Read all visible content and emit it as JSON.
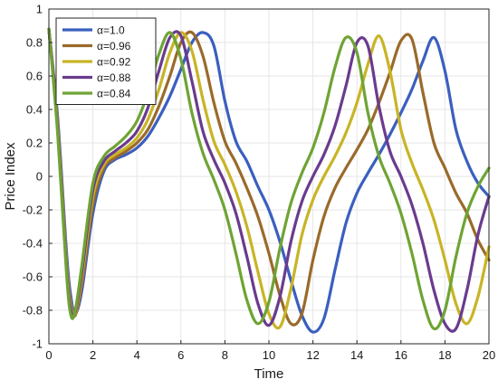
{
  "chart_data": {
    "type": "line",
    "xlabel": "Time",
    "ylabel": "Price Index",
    "xlim": [
      0,
      20
    ],
    "ylim": [
      -1,
      1
    ],
    "xticks": [
      "0",
      "2",
      "4",
      "6",
      "8",
      "10",
      "12",
      "14",
      "16",
      "18",
      "20"
    ],
    "yticks": [
      "1",
      "0.8",
      "0.6",
      "0.4",
      "0.2",
      "0",
      "-0.2",
      "-0.4",
      "-0.6",
      "-0.8",
      "-1"
    ],
    "grid": true,
    "legend_position": "top-left",
    "series": [
      {
        "name": "α=1.0",
        "color": "#3a5fbf",
        "x": [
          0,
          0.4,
          0.8,
          1.0,
          1.2,
          1.5,
          2.0,
          2.5,
          3.0,
          3.5,
          4.0,
          4.5,
          5.0,
          5.5,
          6.0,
          6.5,
          7.0,
          7.5,
          8.0,
          8.5,
          9.0,
          9.5,
          10.0,
          10.5,
          11.0,
          11.5,
          12.0,
          12.5,
          13.0,
          13.5,
          14.0,
          14.5,
          15.0,
          15.5,
          16.0,
          16.5,
          17.0,
          17.5,
          18.0,
          18.5,
          19.0,
          19.5,
          20.0
        ],
        "y": [
          0.88,
          0.35,
          -0.45,
          -0.72,
          -0.82,
          -0.68,
          -0.22,
          0.03,
          0.1,
          0.13,
          0.17,
          0.24,
          0.35,
          0.48,
          0.64,
          0.8,
          0.86,
          0.78,
          0.45,
          0.21,
          0.09,
          -0.06,
          -0.2,
          -0.39,
          -0.62,
          -0.83,
          -0.93,
          -0.85,
          -0.56,
          -0.28,
          -0.1,
          0.02,
          0.13,
          0.25,
          0.38,
          0.52,
          0.69,
          0.83,
          0.63,
          0.28,
          0.09,
          -0.04,
          -0.12
        ]
      },
      {
        "name": "α=0.96",
        "color": "#9a6a2a",
        "x": [
          0,
          0.4,
          0.8,
          1.0,
          1.2,
          1.5,
          2.0,
          2.5,
          3.0,
          3.5,
          4.0,
          4.5,
          5.0,
          5.5,
          6.0,
          6.5,
          7.0,
          7.5,
          8.0,
          8.5,
          9.0,
          9.5,
          10.0,
          10.5,
          11.0,
          11.5,
          12.0,
          12.5,
          13.0,
          13.5,
          14.0,
          14.5,
          15.0,
          15.5,
          16.0,
          16.5,
          17.0,
          17.5,
          18.0,
          18.5,
          19.0,
          19.5,
          20.0
        ],
        "y": [
          0.88,
          0.32,
          -0.5,
          -0.76,
          -0.83,
          -0.64,
          -0.17,
          0.05,
          0.11,
          0.15,
          0.2,
          0.28,
          0.42,
          0.6,
          0.8,
          0.86,
          0.72,
          0.44,
          0.21,
          0.08,
          -0.07,
          -0.24,
          -0.46,
          -0.71,
          -0.88,
          -0.82,
          -0.5,
          -0.24,
          -0.07,
          0.05,
          0.16,
          0.28,
          0.44,
          0.62,
          0.81,
          0.82,
          0.5,
          0.2,
          0.05,
          -0.1,
          -0.22,
          -0.38,
          -0.5
        ]
      },
      {
        "name": "α=0.92",
        "color": "#c8b426",
        "x": [
          0,
          0.4,
          0.8,
          1.0,
          1.2,
          1.5,
          2.0,
          2.5,
          3.0,
          3.5,
          4.0,
          4.5,
          5.0,
          5.5,
          6.0,
          6.5,
          7.0,
          7.5,
          8.0,
          8.5,
          9.0,
          9.5,
          10.0,
          10.5,
          11.0,
          11.5,
          12.0,
          12.5,
          13.0,
          13.5,
          14.0,
          14.5,
          15.0,
          15.5,
          16.0,
          16.5,
          17.0,
          17.5,
          18.0,
          18.5,
          19.0,
          19.5,
          20.0
        ],
        "y": [
          0.88,
          0.3,
          -0.52,
          -0.78,
          -0.82,
          -0.6,
          -0.12,
          0.07,
          0.13,
          0.17,
          0.23,
          0.34,
          0.52,
          0.74,
          0.86,
          0.75,
          0.46,
          0.21,
          0.07,
          -0.09,
          -0.3,
          -0.57,
          -0.82,
          -0.9,
          -0.67,
          -0.35,
          -0.14,
          0.0,
          0.12,
          0.26,
          0.44,
          0.67,
          0.84,
          0.63,
          0.28,
          0.08,
          -0.08,
          -0.26,
          -0.5,
          -0.76,
          -0.88,
          -0.72,
          -0.42
        ]
      },
      {
        "name": "α=0.88",
        "color": "#6a3b8e",
        "x": [
          0,
          0.4,
          0.8,
          1.0,
          1.2,
          1.5,
          2.0,
          2.5,
          3.0,
          3.5,
          4.0,
          4.5,
          5.0,
          5.5,
          6.0,
          6.5,
          7.0,
          7.5,
          8.0,
          8.5,
          9.0,
          9.5,
          10.0,
          10.5,
          11.0,
          11.5,
          12.0,
          12.5,
          13.0,
          13.5,
          14.0,
          14.5,
          15.0,
          15.5,
          16.0,
          16.5,
          17.0,
          17.5,
          18.0,
          18.5,
          19.0,
          19.5,
          20.0
        ],
        "y": [
          0.88,
          0.28,
          -0.55,
          -0.8,
          -0.81,
          -0.57,
          -0.08,
          0.09,
          0.15,
          0.2,
          0.27,
          0.41,
          0.63,
          0.83,
          0.84,
          0.57,
          0.27,
          0.1,
          -0.04,
          -0.22,
          -0.48,
          -0.76,
          -0.89,
          -0.72,
          -0.39,
          -0.15,
          0.0,
          0.13,
          0.3,
          0.54,
          0.8,
          0.78,
          0.42,
          0.15,
          0.0,
          -0.17,
          -0.4,
          -0.68,
          -0.88,
          -0.91,
          -0.68,
          -0.35,
          -0.12
        ]
      },
      {
        "name": "α=0.84",
        "color": "#6ea434",
        "x": [
          0,
          0.4,
          0.8,
          1.0,
          1.2,
          1.5,
          2.0,
          2.5,
          3.0,
          3.5,
          4.0,
          4.5,
          5.0,
          5.5,
          6.0,
          6.5,
          7.0,
          7.5,
          8.0,
          8.5,
          9.0,
          9.5,
          10.0,
          10.5,
          11.0,
          11.5,
          12.0,
          12.5,
          13.0,
          13.5,
          14.0,
          14.5,
          15.0,
          15.5,
          16.0,
          16.5,
          17.0,
          17.5,
          18.0,
          18.5,
          19.0,
          19.5,
          20.0
        ],
        "y": [
          0.88,
          0.25,
          -0.58,
          -0.83,
          -0.8,
          -0.53,
          -0.04,
          0.12,
          0.18,
          0.24,
          0.33,
          0.5,
          0.73,
          0.86,
          0.7,
          0.38,
          0.14,
          -0.02,
          -0.2,
          -0.46,
          -0.74,
          -0.88,
          -0.75,
          -0.43,
          -0.16,
          0.02,
          0.17,
          0.38,
          0.65,
          0.83,
          0.74,
          0.38,
          0.12,
          -0.04,
          -0.22,
          -0.46,
          -0.74,
          -0.91,
          -0.8,
          -0.48,
          -0.22,
          -0.06,
          0.05
        ]
      }
    ]
  }
}
